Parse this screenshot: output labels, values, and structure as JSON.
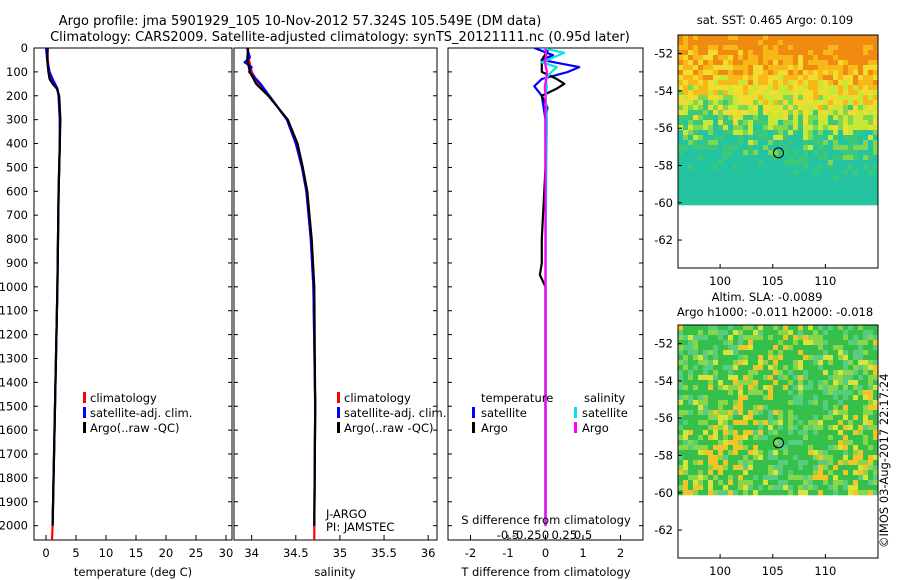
{
  "header": {
    "title_line1": "Argo profile: jma 5901929_105 10-Nov-2012 57.324S 105.549E (DM data)",
    "title_line2": "Climatology: CARS2009. Satellite-adjusted climatology: synTS_20121111.nc (0.95d later)"
  },
  "depth_ticks": [
    "0",
    "100",
    "200",
    "300",
    "400",
    "500",
    "600",
    "700",
    "800",
    "900",
    "1000",
    "1100",
    "1200",
    "1300",
    "1400",
    "1500",
    "1600",
    "1700",
    "1800",
    "1900",
    "2000"
  ],
  "depth_tick_values": [
    0,
    100,
    200,
    300,
    400,
    500,
    600,
    700,
    800,
    900,
    1000,
    1100,
    1200,
    1300,
    1400,
    1500,
    1600,
    1700,
    1800,
    1900,
    2000
  ],
  "colors": {
    "climatology": "#ff0000",
    "satellite": "#0000ff",
    "argo": "#000000",
    "sal_satellite": "#00e5ee",
    "sal_argo": "#ff00ff"
  },
  "chart_data": [
    {
      "type": "line",
      "xlabel": "temperature (deg C)",
      "ylabel": "",
      "xlim": [
        -2,
        31
      ],
      "ylim": [
        2060,
        0
      ],
      "xticks": [
        "0",
        "5",
        "10",
        "15",
        "20",
        "25",
        "30"
      ],
      "xtick_values": [
        0,
        5,
        10,
        15,
        20,
        25,
        30
      ],
      "legend": {
        "placement": "lower-middle",
        "entries": [
          "climatology",
          "satellite-adj. clim.",
          "Argo(..raw -QC)"
        ]
      },
      "series": [
        {
          "name": "climatology",
          "color": "#ff0000",
          "depth": [
            0,
            50,
            100,
            130,
            150,
            170,
            200,
            300,
            400,
            600,
            1000,
            1500,
            2000,
            2060
          ],
          "values": [
            0.2,
            0.3,
            0.5,
            0.9,
            1.4,
            1.9,
            2.1,
            2.3,
            2.3,
            2.1,
            1.9,
            1.5,
            1.1,
            1.0
          ]
        },
        {
          "name": "satellite-adj. clim.",
          "color": "#0000ff",
          "depth": [
            0,
            50,
            100,
            130,
            150,
            170,
            200,
            300,
            400,
            600,
            1000,
            1500,
            2000
          ],
          "values": [
            0.0,
            0.2,
            0.6,
            1.1,
            1.5,
            1.9,
            2.1,
            2.3,
            2.3,
            2.1,
            1.9,
            1.5,
            1.1
          ]
        },
        {
          "name": "Argo(..raw -QC)",
          "color": "#000000",
          "depth": [
            0,
            50,
            100,
            130,
            150,
            170,
            200,
            300,
            400,
            600,
            1000,
            1500,
            2000
          ],
          "values": [
            0.3,
            0.2,
            0.4,
            0.6,
            1.1,
            1.8,
            2.2,
            2.4,
            2.3,
            2.1,
            1.9,
            1.5,
            1.1
          ]
        }
      ]
    },
    {
      "type": "line",
      "xlabel": "salinity",
      "ylabel": "",
      "xlim": [
        33.8,
        36.1
      ],
      "ylim": [
        2060,
        0
      ],
      "xticks": [
        "34",
        "34.5",
        "35",
        "35.5",
        "36"
      ],
      "xtick_values": [
        34,
        34.5,
        35,
        35.5,
        36
      ],
      "legend": {
        "placement": "lower-right",
        "entries": [
          "climatology",
          "satellite-adj. clim.",
          "Argo(..raw -QC)"
        ]
      },
      "annotations": [
        "J-ARGO",
        "PI: JAMSTEC"
      ],
      "series": [
        {
          "name": "climatology",
          "color": "#ff0000",
          "depth": [
            0,
            50,
            100,
            150,
            200,
            300,
            400,
            500,
            600,
            800,
            1000,
            1500,
            2000,
            2060
          ],
          "values": [
            33.95,
            33.97,
            34.0,
            34.08,
            34.2,
            34.4,
            34.5,
            34.57,
            34.62,
            34.67,
            34.7,
            34.72,
            34.71,
            34.71
          ]
        },
        {
          "name": "satellite-adj. clim.",
          "color": "#0000ff",
          "depth": [
            0,
            40,
            60,
            80,
            100,
            130,
            150,
            200,
            300,
            400,
            500,
            600,
            800,
            1000,
            1500,
            2000
          ],
          "values": [
            33.95,
            33.98,
            33.92,
            34.0,
            33.97,
            34.05,
            34.1,
            34.2,
            34.4,
            34.5,
            34.57,
            34.62,
            34.67,
            34.7,
            34.72,
            34.71
          ]
        },
        {
          "name": "Argo(..raw -QC)",
          "color": "#000000",
          "depth": [
            0,
            50,
            100,
            150,
            200,
            300,
            400,
            500,
            600,
            800,
            1000,
            1500,
            2000
          ],
          "values": [
            33.96,
            33.95,
            33.98,
            34.05,
            34.19,
            34.41,
            34.52,
            34.58,
            34.63,
            34.68,
            34.71,
            34.72,
            34.71
          ]
        }
      ]
    },
    {
      "type": "line",
      "xlabel": "T difference from climatology",
      "xlabel_top": "S difference from climatology",
      "xlim": [
        -2.6,
        2.6
      ],
      "ylim": [
        2060,
        0
      ],
      "xticks": [
        "-2",
        "-1",
        "0",
        "1",
        "2"
      ],
      "xtick_values": [
        -2,
        -1,
        0,
        1,
        2
      ],
      "xticks_top": [
        "-0.5",
        "-0.25",
        "0",
        "0.25",
        "0.5"
      ],
      "xtick_top_values": [
        -0.5,
        -0.25,
        0,
        0.25,
        0.5
      ],
      "legend": {
        "placement": "lower",
        "temperature_title": "temperature",
        "salinity_title": "salinity",
        "entries": [
          "satellite",
          "Argo",
          "satellite",
          "Argo"
        ]
      },
      "series": [
        {
          "name": "satellite",
          "group": "temperature",
          "color": "#0000ff",
          "depth": [
            0,
            30,
            50,
            80,
            100,
            130,
            160,
            200,
            300,
            500,
            1000,
            1500,
            2000
          ],
          "values": [
            -0.3,
            0.2,
            -0.1,
            0.9,
            0.6,
            -0.1,
            -0.3,
            -0.1,
            0.0,
            0.0,
            0.0,
            0.0,
            0.0
          ]
        },
        {
          "name": "Argo",
          "group": "temperature",
          "color": "#000000",
          "depth": [
            0,
            50,
            100,
            130,
            150,
            170,
            200,
            250,
            300,
            500,
            800,
            900,
            950,
            1000,
            1500,
            2000
          ],
          "values": [
            0.1,
            -0.1,
            -0.1,
            0.3,
            0.5,
            0.3,
            -0.1,
            0.05,
            0.0,
            0.0,
            -0.1,
            -0.1,
            -0.15,
            0.0,
            0.0,
            0.0
          ]
        },
        {
          "name": "satellite",
          "group": "salinity",
          "color": "#00e5ee",
          "depth": [
            0,
            20,
            40,
            60,
            80,
            100,
            130,
            160,
            200,
            300,
            500,
            1000,
            1500,
            2000
          ],
          "values": [
            -0.05,
            0.25,
            0.1,
            -0.05,
            0.15,
            0.08,
            0.0,
            0.02,
            0.0,
            0.02,
            0.01,
            0.0,
            0.0,
            0.0
          ]
        },
        {
          "name": "Argo",
          "group": "salinity",
          "color": "#ff00ff",
          "depth": [
            0,
            30,
            60,
            100,
            130,
            160,
            200,
            300,
            500,
            1000,
            1500,
            2000
          ],
          "values": [
            0.0,
            0.01,
            -0.01,
            0.02,
            0.01,
            -0.01,
            0.0,
            0.0,
            0.0,
            0.0,
            0.0,
            0.0
          ]
        }
      ]
    },
    {
      "type": "heatmap",
      "title": "sat. SST: 0.465 Argo: 0.109",
      "xlim": [
        96,
        115
      ],
      "ylim": [
        -63.5,
        -51
      ],
      "xticks": [
        "100",
        "105",
        "110"
      ],
      "xtick_values": [
        100,
        105,
        110
      ],
      "yticks": [
        "-52",
        "-54",
        "-56",
        "-58",
        "-60",
        "-62"
      ],
      "ytick_values": [
        -52,
        -54,
        -56,
        -58,
        -60,
        -62
      ],
      "data_extent_lat": [
        -60,
        -51
      ],
      "profile_location": {
        "lon": 105.549,
        "lat": -57.324
      }
    },
    {
      "type": "heatmap",
      "title": "Altim. SLA: -0.0089",
      "subtitle": "Argo h1000: -0.011 h2000: -0.018",
      "xlim": [
        96,
        115
      ],
      "ylim": [
        -63.5,
        -51
      ],
      "xticks": [
        "100",
        "105",
        "110"
      ],
      "xtick_values": [
        100,
        105,
        110
      ],
      "yticks": [
        "-52",
        "-54",
        "-56",
        "-58",
        "-60",
        "-62"
      ],
      "ytick_values": [
        -52,
        -54,
        -56,
        -58,
        -60,
        -62
      ],
      "data_extent_lat": [
        -60,
        -51
      ],
      "profile_location": {
        "lon": 105.549,
        "lat": -57.324
      }
    }
  ],
  "credit": "©IMOS 03-Aug-2017 22:17:24"
}
